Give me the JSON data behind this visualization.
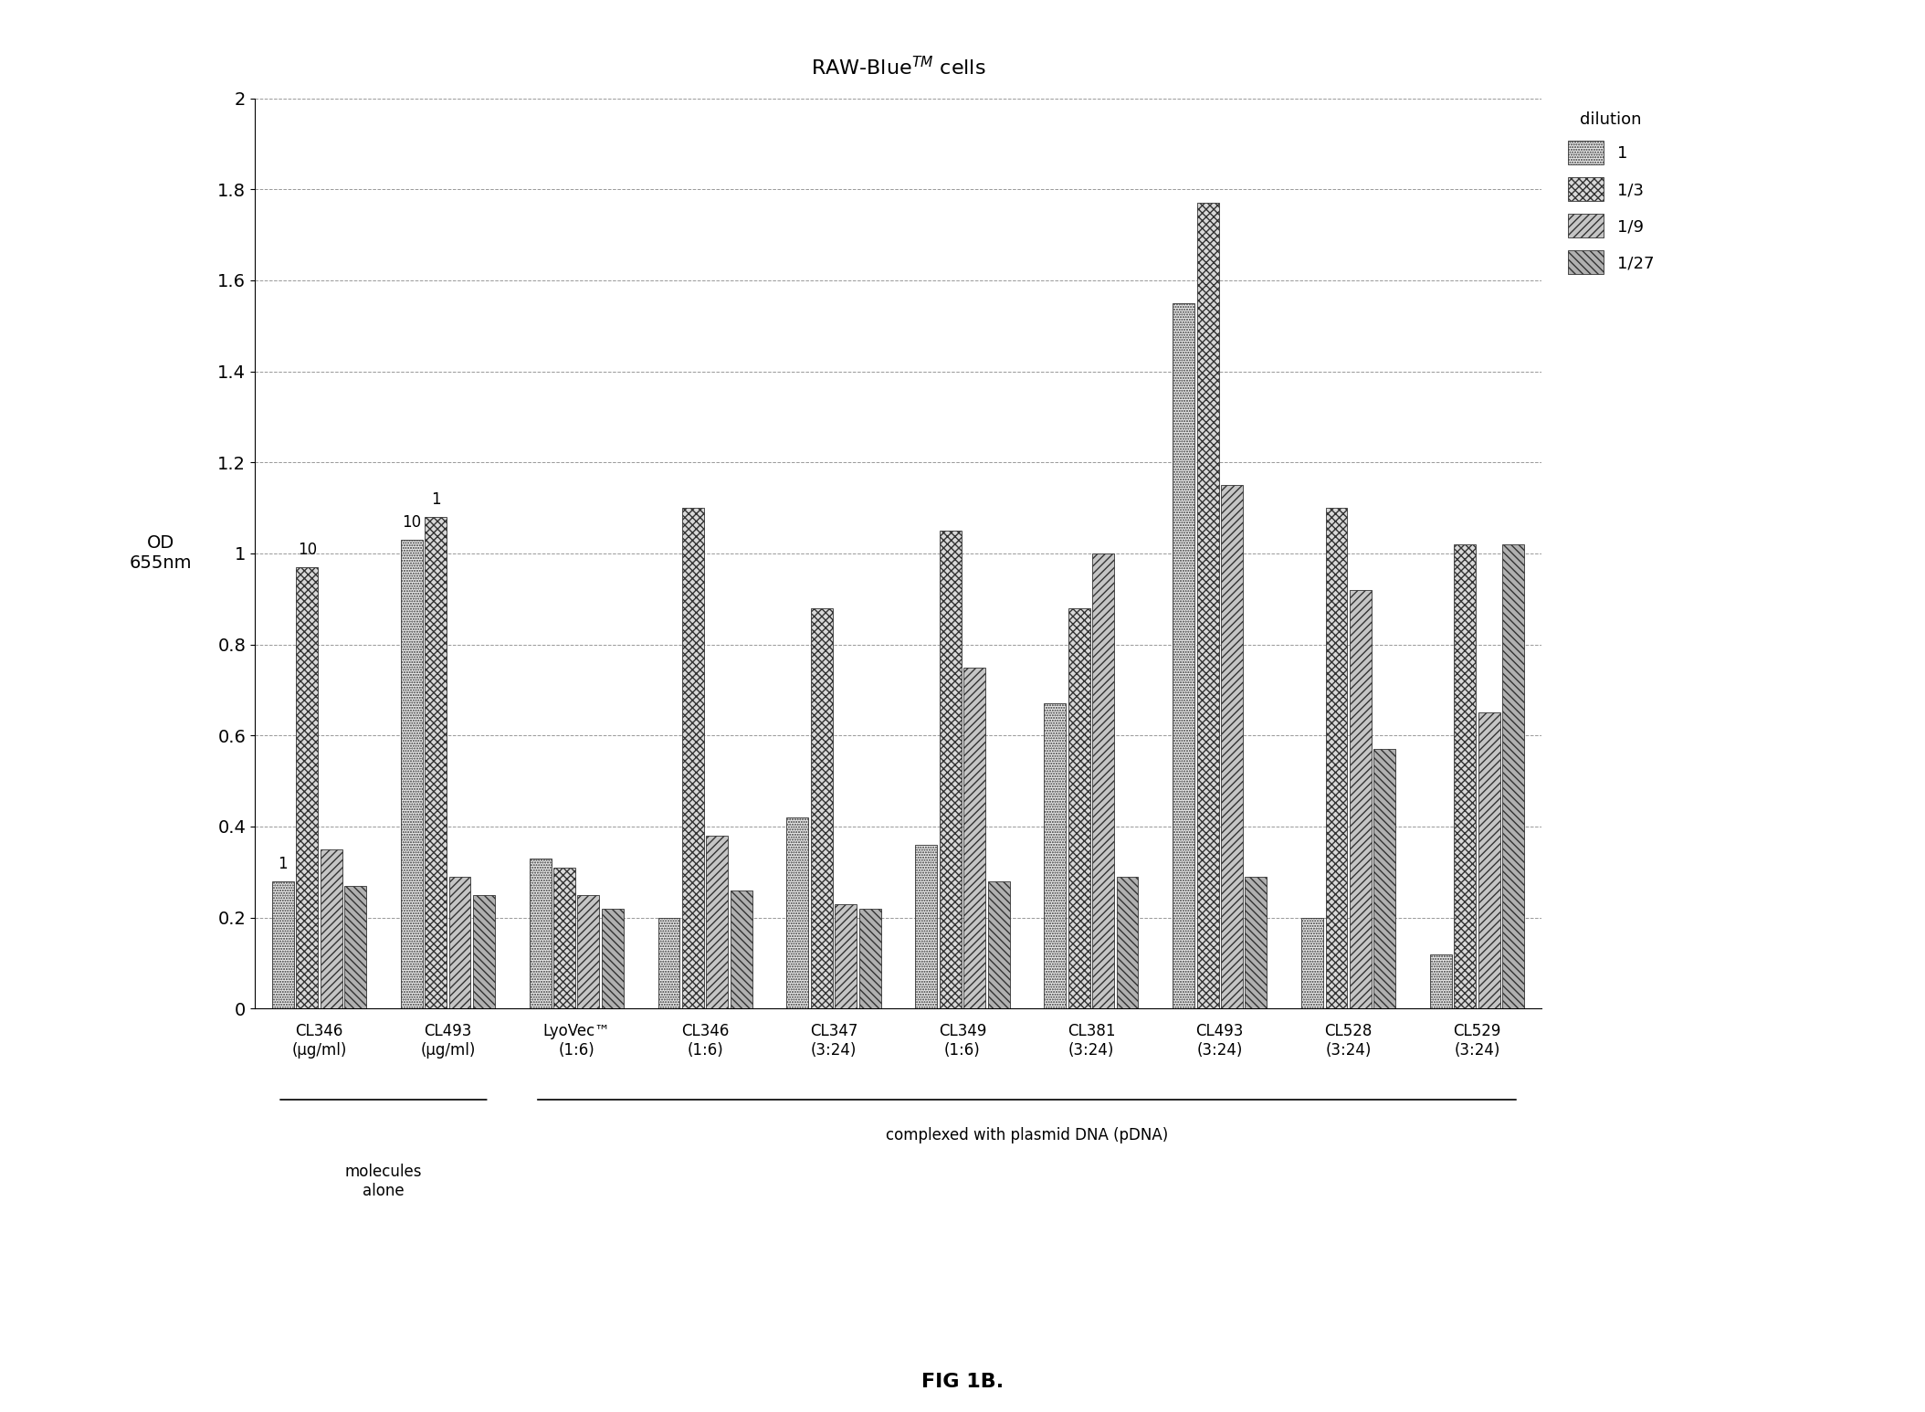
{
  "title": "RAW-Blue™ cells",
  "ylabel_line1": "OD",
  "ylabel_line2": "655nm",
  "ylim": [
    0,
    2.0
  ],
  "yticks": [
    0,
    0.2,
    0.4,
    0.6,
    0.8,
    1.0,
    1.2,
    1.4,
    1.6,
    1.8,
    2.0
  ],
  "categories": [
    "CL346\n(µg/ml)",
    "CL493\n(µg/ml)",
    "LyoVec™\n(1:6)",
    "CL346\n(1:6)",
    "CL347\n(3:24)",
    "CL349\n(1:6)",
    "CL381\n(3:24)",
    "CL493\n(3:24)",
    "CL528\n(3:24)",
    "CL529\n(3:24)"
  ],
  "group1_label": "molecules\nalone",
  "group2_label": "complexed with plasmid DNA (pDNA)",
  "legend_labels": [
    "1",
    "1/3",
    "1/9",
    "1/27"
  ],
  "legend_title": "dilution",
  "annotations": [
    [
      0,
      0,
      "1"
    ],
    [
      0,
      1,
      "10"
    ],
    [
      1,
      0,
      "10"
    ],
    [
      1,
      1,
      "1"
    ]
  ],
  "data": [
    [
      0.28,
      0.97,
      0.35,
      0.27
    ],
    [
      1.03,
      1.08,
      0.29,
      0.25
    ],
    [
      0.33,
      0.31,
      0.25,
      0.22
    ],
    [
      0.2,
      1.1,
      0.38,
      0.26
    ],
    [
      0.42,
      0.88,
      0.23,
      0.22
    ],
    [
      0.36,
      1.05,
      0.75,
      0.28
    ],
    [
      0.67,
      0.88,
      1.0,
      0.29
    ],
    [
      1.55,
      1.77,
      1.15,
      0.29
    ],
    [
      0.2,
      1.1,
      0.92,
      0.57
    ],
    [
      0.12,
      1.02,
      0.65,
      1.02
    ]
  ],
  "face_colors": [
    "#e8e8e8",
    "#d4d4d4",
    "#c0c0c0",
    "#a8a8a8"
  ],
  "hatch_patterns": [
    "....",
    "xxxx",
    "////",
    "\\\\\\\\"
  ],
  "background_color": "#ffffff",
  "figsize": [
    21.08,
    15.46
  ],
  "dpi": 100
}
